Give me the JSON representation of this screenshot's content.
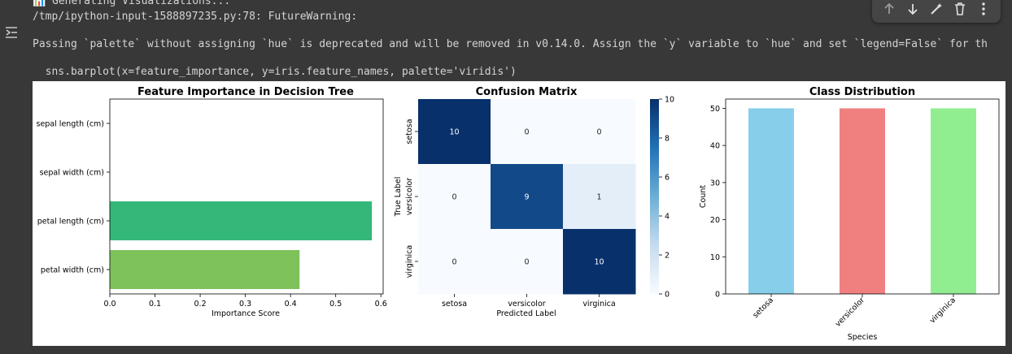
{
  "console": {
    "line1": "📊 Generating Visualizations...",
    "line2": "/tmp/ipython-input-1588897235.py:78: FutureWarning:",
    "line3": "Passing `palette` without assigning `hue` is deprecated and will be removed in v0.14.0. Assign the `y` variable to `hue` and set `legend=False` for th",
    "line4": "  sns.barplot(x=feature_importance, y=iris.feature_names, palette='viridis')"
  },
  "toolbar": {
    "icons": [
      "arrow-up-icon",
      "arrow-down-icon",
      "edit-magic-icon",
      "trash-icon",
      "more-vert-icon"
    ]
  },
  "chart_data": [
    {
      "type": "bar",
      "orientation": "horizontal",
      "title": "Feature Importance in Decision Tree",
      "xlabel": "Importance Score",
      "ylabel": "",
      "categories": [
        "sepal length (cm)",
        "sepal width (cm)",
        "petal length (cm)",
        "petal width (cm)"
      ],
      "values": [
        0.0,
        0.0,
        0.58,
        0.42
      ],
      "colors": [
        "#440154",
        "#31688e",
        "#35b779",
        "#7ec25a"
      ],
      "xlim": [
        0,
        0.605
      ],
      "xticks": [
        "0.0",
        "0.1",
        "0.2",
        "0.3",
        "0.4",
        "0.5",
        "0.6"
      ]
    },
    {
      "type": "heatmap",
      "title": "Confusion Matrix",
      "xlabel": "Predicted Label",
      "ylabel": "True Label",
      "x_categories": [
        "setosa",
        "versicolor",
        "virginica"
      ],
      "y_categories": [
        "setosa",
        "versicolor",
        "virginica"
      ],
      "values": [
        [
          10,
          0,
          0
        ],
        [
          0,
          9,
          1
        ],
        [
          0,
          0,
          10
        ]
      ],
      "colorbar": {
        "min": 0,
        "max": 10,
        "ticks": [
          "0",
          "2",
          "4",
          "6",
          "8",
          "10"
        ]
      }
    },
    {
      "type": "bar",
      "title": "Class Distribution",
      "xlabel": "Species",
      "ylabel": "Count",
      "categories": [
        "setosa",
        "versicolor",
        "virginica"
      ],
      "values": [
        50,
        50,
        50
      ],
      "colors": [
        "#87ceeb",
        "#f08080",
        "#90ee90"
      ],
      "ylim": [
        0,
        52.5
      ],
      "yticks": [
        "0",
        "10",
        "20",
        "30",
        "40",
        "50"
      ]
    }
  ]
}
